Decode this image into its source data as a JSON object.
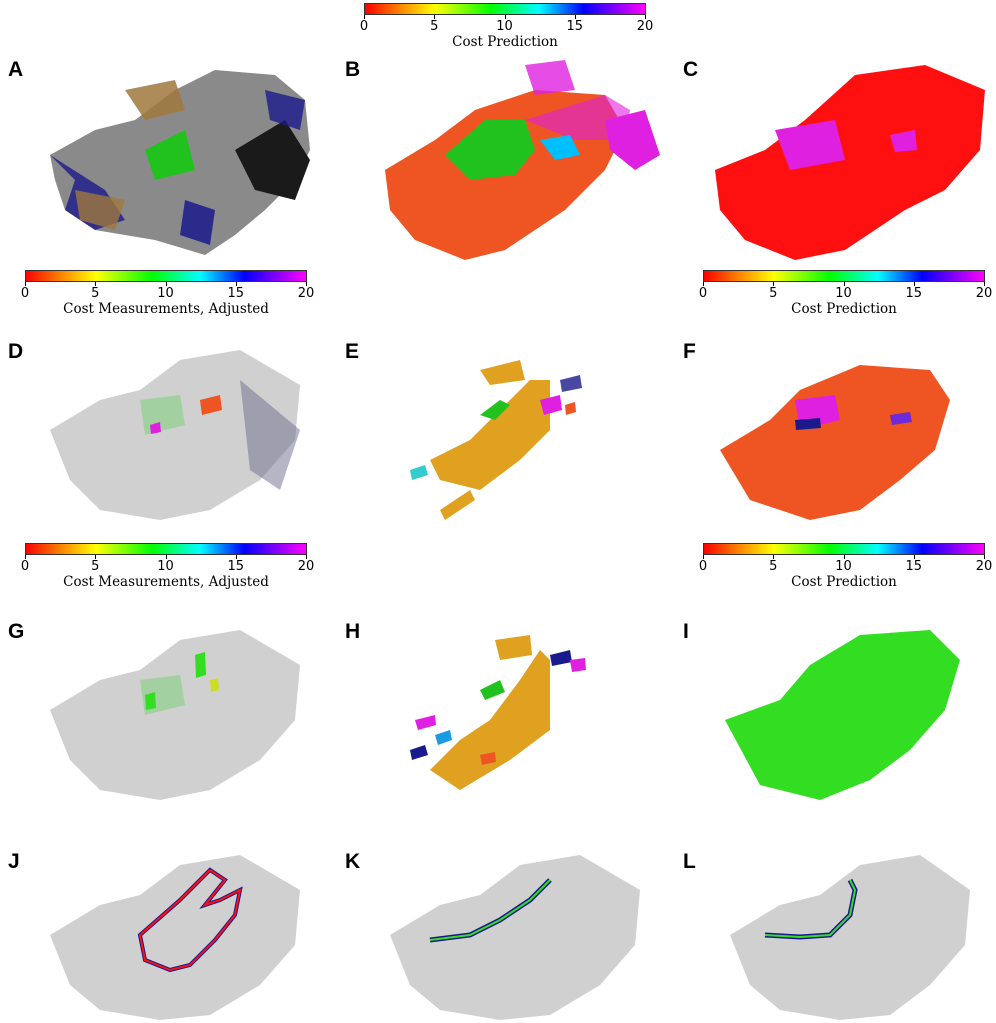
{
  "panels": {
    "A": "A",
    "B": "B",
    "C": "C",
    "D": "D",
    "E": "E",
    "F": "F",
    "G": "G",
    "H": "H",
    "I": "I",
    "J": "J",
    "K": "K",
    "L": "L"
  },
  "colorbars": {
    "top": {
      "ticks": [
        "0",
        "5",
        "10",
        "15",
        "20"
      ],
      "label": "Cost Prediction"
    },
    "a": {
      "ticks": [
        "0",
        "5",
        "10",
        "15",
        "20"
      ],
      "label": "Cost Measurements, Adjusted"
    },
    "c": {
      "ticks": [
        "0",
        "5",
        "10",
        "15",
        "20"
      ],
      "label": "Cost Prediction"
    },
    "d": {
      "ticks": [
        "0",
        "5",
        "10",
        "15",
        "20"
      ],
      "label": "Cost Measurements, Adjusted"
    },
    "f": {
      "ticks": [
        "0",
        "5",
        "10",
        "15",
        "20"
      ],
      "label": "Cost Prediction"
    }
  },
  "colors": {
    "gray": "#8a8a8a",
    "tan": "#a0783c",
    "navy": "#1a1a8c",
    "black": "#1a1a1a",
    "green": "#22c21e",
    "orange_red": "#ee5522",
    "red": "#ff1010",
    "magenta": "#e020e0",
    "gold": "#e0a020",
    "lime": "#33dd22"
  }
}
